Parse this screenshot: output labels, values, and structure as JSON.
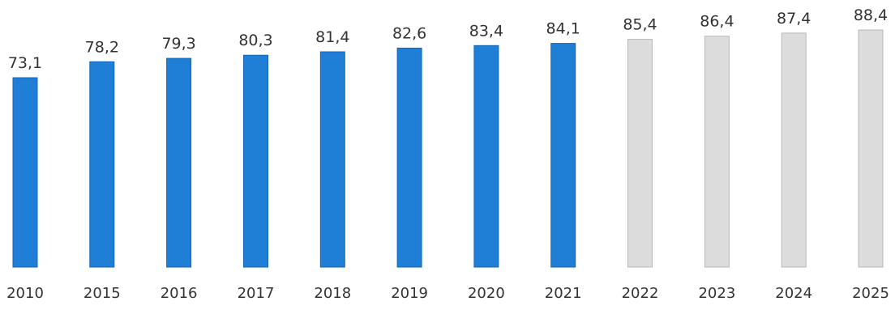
{
  "chart_data": {
    "type": "bar",
    "title": "",
    "xlabel": "",
    "ylabel": "",
    "categories": [
      "2010",
      "2015",
      "2016",
      "2017",
      "2018",
      "2019",
      "2020",
      "2021",
      "2022",
      "2023",
      "2024",
      "2025"
    ],
    "values": [
      73.1,
      78.2,
      79.3,
      80.3,
      81.4,
      82.6,
      83.4,
      84.1,
      85.4,
      86.4,
      87.4,
      88.4
    ],
    "value_labels": [
      "73,1",
      "78,2",
      "79,3",
      "80,3",
      "81,4",
      "82,6",
      "83,4",
      "84,1",
      "85,4",
      "86,4",
      "87,4",
      "88,4"
    ],
    "projected": [
      false,
      false,
      false,
      false,
      false,
      false,
      false,
      false,
      true,
      true,
      true,
      true
    ],
    "ylim": [
      0,
      100
    ],
    "grid": false,
    "legend": "none",
    "colors": {
      "actual": "#1f7fd6",
      "actual_edge": "#1566b5",
      "projected": "#dcdcdc",
      "projected_edge": "#b8b8b8",
      "text": "#333333"
    }
  }
}
